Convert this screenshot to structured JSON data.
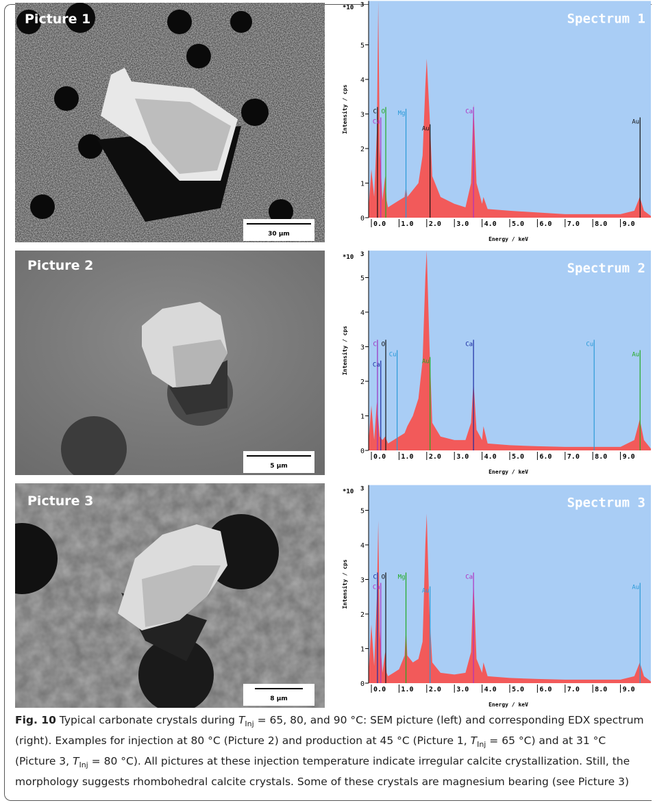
{
  "panels": [
    {
      "picture": {
        "label": "Picture 1",
        "scale_bar": "30 µm"
      }
    },
    {
      "picture": {
        "label": "Picture 2",
        "scale_bar": "5 µm"
      }
    },
    {
      "picture": {
        "label": "Picture 3",
        "scale_bar": "8 µm"
      }
    }
  ],
  "chart_data": [
    {
      "type": "area",
      "title": "Spectrum 1",
      "x_label": "Energy / keV",
      "y_label": "Intensity / cps",
      "y_multiplier": "*10",
      "y_multiplier_exponent": "3",
      "background": "#a9cdf5",
      "x": [
        -0.1,
        0.0,
        0.1,
        0.2,
        0.25,
        0.3,
        0.4,
        0.5,
        0.55,
        0.6,
        0.8,
        1.0,
        1.2,
        1.25,
        1.3,
        1.5,
        1.7,
        1.85,
        1.95,
        2.0,
        2.1,
        2.2,
        2.5,
        3.0,
        3.4,
        3.6,
        3.69,
        3.8,
        4.0,
        4.05,
        4.2,
        5.0,
        6.0,
        7.0,
        8.0,
        9.0,
        9.5,
        9.7,
        9.85,
        10.1
      ],
      "series": [
        {
          "color": "#f25a5a",
          "values": [
            0.3,
            1.4,
            0.6,
            2.5,
            6.27,
            2.0,
            0.5,
            1.2,
            0.5,
            0.3,
            0.4,
            0.5,
            0.6,
            0.9,
            0.6,
            0.8,
            1.0,
            1.8,
            3.8,
            4.6,
            3.0,
            1.2,
            0.6,
            0.4,
            0.3,
            1.0,
            3.3,
            1.0,
            0.4,
            0.6,
            0.25,
            0.2,
            0.15,
            0.1,
            0.1,
            0.1,
            0.2,
            0.6,
            0.2,
            0.05
          ]
        }
      ],
      "lines": [
        {
          "label": "C",
          "x": 0.22,
          "height": 3.2,
          "color": "#111111"
        },
        {
          "label": "O",
          "x": 0.52,
          "height": 3.2,
          "color": "#22aa22"
        },
        {
          "label": "Ca",
          "x": 0.34,
          "height": 2.9,
          "color": "#b030c0"
        },
        {
          "label": "Mg",
          "x": 1.25,
          "height": 3.15,
          "color": "#2a9ad8"
        },
        {
          "label": "Au",
          "x": 2.12,
          "height": 2.7,
          "color": "#111111"
        },
        {
          "label": "Ca",
          "x": 3.69,
          "height": 3.2,
          "color": "#b030c0"
        },
        {
          "label": "Au",
          "x": 9.71,
          "height": 2.9,
          "color": "#111111"
        }
      ],
      "xlim": [
        -0.1,
        10.1
      ],
      "ylim": [
        0,
        6.27
      ],
      "xticks": [
        {
          "value": 0,
          "label": "0.0"
        },
        {
          "value": 1,
          "label": "1.0"
        },
        {
          "value": 2,
          "label": "2.0"
        },
        {
          "value": 3,
          "label": "3.0"
        },
        {
          "value": 4,
          "label": "4.0"
        },
        {
          "value": 5,
          "label": "5.0"
        },
        {
          "value": 6,
          "label": "6.0"
        },
        {
          "value": 7,
          "label": "7.0"
        },
        {
          "value": 8,
          "label": "8.0"
        },
        {
          "value": 9,
          "label": "9.0"
        }
      ],
      "yticks": [
        0,
        1,
        2,
        3,
        4,
        5
      ]
    },
    {
      "type": "area",
      "title": "Spectrum 2",
      "x_label": "Energy / keV",
      "y_label": "Intensity / cps",
      "y_multiplier": "*10",
      "y_multiplier_exponent": "3",
      "background": "#a9cdf5",
      "x": [
        -0.1,
        0.0,
        0.1,
        0.2,
        0.25,
        0.3,
        0.4,
        0.5,
        0.55,
        0.6,
        0.8,
        1.0,
        1.2,
        1.25,
        1.3,
        1.5,
        1.7,
        1.85,
        1.95,
        2.0,
        2.1,
        2.2,
        2.5,
        3.0,
        3.4,
        3.6,
        3.69,
        3.8,
        4.0,
        4.05,
        4.2,
        5.0,
        6.0,
        7.0,
        8.0,
        9.0,
        9.5,
        9.7,
        9.85,
        10.1
      ],
      "series": [
        {
          "color": "#f25a5a",
          "values": [
            0.3,
            1.3,
            0.3,
            1.4,
            0.9,
            0.4,
            0.3,
            0.4,
            0.3,
            0.2,
            0.3,
            0.4,
            0.5,
            0.6,
            0.7,
            1.0,
            1.5,
            2.6,
            5.0,
            5.78,
            3.0,
            0.8,
            0.4,
            0.3,
            0.3,
            0.8,
            2.0,
            0.6,
            0.3,
            0.7,
            0.2,
            0.15,
            0.12,
            0.1,
            0.1,
            0.1,
            0.3,
            0.9,
            0.3,
            0.05
          ]
        }
      ],
      "lines": [
        {
          "label": "C",
          "x": 0.22,
          "height": 3.2,
          "color": "#9a30c0"
        },
        {
          "label": "O",
          "x": 0.52,
          "height": 3.2,
          "color": "#111111"
        },
        {
          "label": "Ca",
          "x": 0.34,
          "height": 2.6,
          "color": "#1a2aa0"
        },
        {
          "label": "Cu",
          "x": 0.93,
          "height": 2.9,
          "color": "#2a9ad8"
        },
        {
          "label": "Au",
          "x": 2.12,
          "height": 2.7,
          "color": "#22aa22"
        },
        {
          "label": "Ca",
          "x": 3.69,
          "height": 3.2,
          "color": "#1a2aa0"
        },
        {
          "label": "Cu",
          "x": 8.05,
          "height": 3.2,
          "color": "#2a9ad8"
        },
        {
          "label": "Au",
          "x": 9.71,
          "height": 2.9,
          "color": "#22aa22"
        }
      ],
      "xlim": [
        -0.1,
        10.1
      ],
      "ylim": [
        0,
        5.78
      ],
      "xticks": [
        {
          "value": 0,
          "label": "0.0"
        },
        {
          "value": 1,
          "label": "1.0"
        },
        {
          "value": 2,
          "label": "2.0"
        },
        {
          "value": 3,
          "label": "3.0"
        },
        {
          "value": 4,
          "label": "4.0"
        },
        {
          "value": 5,
          "label": "5.0"
        },
        {
          "value": 6,
          "label": "6.0"
        },
        {
          "value": 7,
          "label": "7.0"
        },
        {
          "value": 8,
          "label": "8.0"
        },
        {
          "value": 9,
          "label": "9.0"
        }
      ],
      "yticks": [
        0,
        1,
        2,
        3,
        4,
        5
      ]
    },
    {
      "type": "area",
      "title": "Spectrum 3",
      "x_label": "Energy / keV",
      "y_label": "Intensity / cps",
      "y_multiplier": "*10",
      "y_multiplier_exponent": "3",
      "background": "#a9cdf5",
      "x": [
        -0.1,
        0.0,
        0.1,
        0.2,
        0.25,
        0.3,
        0.4,
        0.5,
        0.55,
        0.6,
        0.8,
        1.0,
        1.2,
        1.25,
        1.3,
        1.5,
        1.7,
        1.85,
        1.95,
        2.0,
        2.1,
        2.2,
        2.5,
        3.0,
        3.4,
        3.6,
        3.69,
        3.8,
        4.0,
        4.05,
        4.2,
        5.0,
        6.0,
        7.0,
        8.0,
        9.0,
        9.5,
        9.7,
        9.85,
        10.1
      ],
      "series": [
        {
          "color": "#f25a5a",
          "values": [
            0.3,
            1.7,
            0.5,
            2.5,
            4.7,
            1.5,
            0.3,
            0.9,
            0.3,
            0.2,
            0.3,
            0.4,
            0.8,
            1.6,
            0.8,
            0.6,
            0.7,
            1.2,
            4.0,
            4.9,
            2.0,
            0.6,
            0.3,
            0.25,
            0.3,
            0.9,
            3.0,
            0.7,
            0.3,
            0.6,
            0.2,
            0.15,
            0.12,
            0.1,
            0.1,
            0.1,
            0.2,
            0.6,
            0.2,
            0.05
          ]
        }
      ],
      "lines": [
        {
          "label": "C",
          "x": 0.22,
          "height": 3.2,
          "color": "#1a2aa0"
        },
        {
          "label": "O",
          "x": 0.52,
          "height": 3.2,
          "color": "#111111"
        },
        {
          "label": "Ca",
          "x": 0.34,
          "height": 2.9,
          "color": "#b030c0"
        },
        {
          "label": "Mg",
          "x": 1.25,
          "height": 3.2,
          "color": "#22aa22"
        },
        {
          "label": "Au",
          "x": 2.12,
          "height": 2.8,
          "color": "#2a9ad8"
        },
        {
          "label": "Ca",
          "x": 3.69,
          "height": 3.2,
          "color": "#b030c0"
        },
        {
          "label": "Au",
          "x": 9.71,
          "height": 2.9,
          "color": "#2a9ad8"
        }
      ],
      "xlim": [
        -0.1,
        10.1
      ],
      "ylim": [
        0,
        5.73
      ],
      "xticks": [
        {
          "value": 0,
          "label": "0.0"
        },
        {
          "value": 1,
          "label": "1.0"
        },
        {
          "value": 2,
          "label": "2.0"
        },
        {
          "value": 3,
          "label": "3.0"
        },
        {
          "value": 4,
          "label": "4.0"
        },
        {
          "value": 5,
          "label": "5.0"
        },
        {
          "value": 6,
          "label": "6.0"
        },
        {
          "value": 7,
          "label": "7.0"
        },
        {
          "value": 8,
          "label": "8.0"
        },
        {
          "value": 9,
          "label": "9.0"
        }
      ],
      "yticks": [
        0,
        1,
        2,
        3,
        4,
        5
      ]
    }
  ],
  "caption": {
    "label": "Fig. 10",
    "segments": [
      {
        "text": " Typical carbonate crystals during ",
        "style": "normal"
      },
      {
        "text": "T",
        "style": "italic"
      },
      {
        "text": "Inj",
        "style": "sub"
      },
      {
        "text": " = 65, 80, and 90 °C: SEM picture (left) and corresponding EDX spectrum (right). Examples for injection at 80 °C (Picture 2) and production at 45 °C (Picture 1, ",
        "style": "normal"
      },
      {
        "text": "T",
        "style": "italic"
      },
      {
        "text": "Inj",
        "style": "sub"
      },
      {
        "text": " = 65 °C) and at 31 °C (Picture 3, ",
        "style": "normal"
      },
      {
        "text": "T",
        "style": "italic"
      },
      {
        "text": "Inj",
        "style": "sub"
      },
      {
        "text": " = 80 °C). All pictures at these injection temperature indicate irregular calcite crystallization. Still, the morphology suggests rhombohedral calcite crystals. Some of these crystals are magnesium bearing (see Picture 3)",
        "style": "normal"
      }
    ]
  }
}
